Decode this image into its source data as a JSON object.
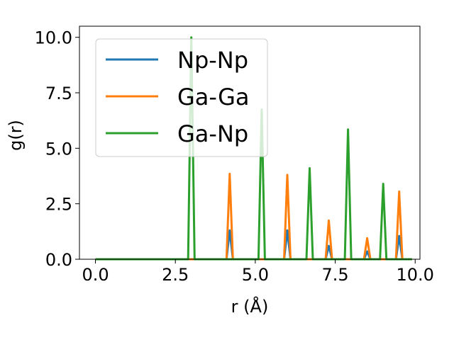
{
  "chart_data": {
    "type": "line",
    "xlabel": "r (Å)",
    "ylabel": "g(r)",
    "xlim": [
      -0.5,
      10.15
    ],
    "ylim": [
      0,
      10.5
    ],
    "xticks": [
      0.0,
      2.5,
      5.0,
      7.5,
      10.0
    ],
    "xtick_labels": [
      "0.0",
      "2.5",
      "5.0",
      "7.5",
      "10.0"
    ],
    "yticks": [
      0.0,
      2.5,
      5.0,
      7.5,
      10.0
    ],
    "ytick_labels": [
      "0.0",
      "2.5",
      "5.0",
      "7.5",
      "10.0"
    ],
    "grid": false,
    "legend_position": "top-left",
    "x_start": 0.0,
    "x_end": 9.9,
    "series": [
      {
        "name": "Np-Np",
        "color": "#1f77b4",
        "peaks": [
          {
            "x": 4.2,
            "y": 1.3
          },
          {
            "x": 6.0,
            "y": 1.3
          },
          {
            "x": 7.3,
            "y": 0.6
          },
          {
            "x": 8.5,
            "y": 0.35
          },
          {
            "x": 9.5,
            "y": 1.05
          }
        ]
      },
      {
        "name": "Ga-Ga",
        "color": "#ff7f0e",
        "peaks": [
          {
            "x": 4.2,
            "y": 3.85
          },
          {
            "x": 6.0,
            "y": 3.8
          },
          {
            "x": 7.3,
            "y": 1.75
          },
          {
            "x": 8.5,
            "y": 0.95
          },
          {
            "x": 9.5,
            "y": 3.05
          }
        ]
      },
      {
        "name": "Ga-Np",
        "color": "#2ca02c",
        "peaks": [
          {
            "x": 3.0,
            "y": 10.0
          },
          {
            "x": 5.2,
            "y": 6.75
          },
          {
            "x": 6.7,
            "y": 4.1
          },
          {
            "x": 7.9,
            "y": 5.85
          },
          {
            "x": 9.0,
            "y": 3.4
          }
        ]
      }
    ]
  }
}
